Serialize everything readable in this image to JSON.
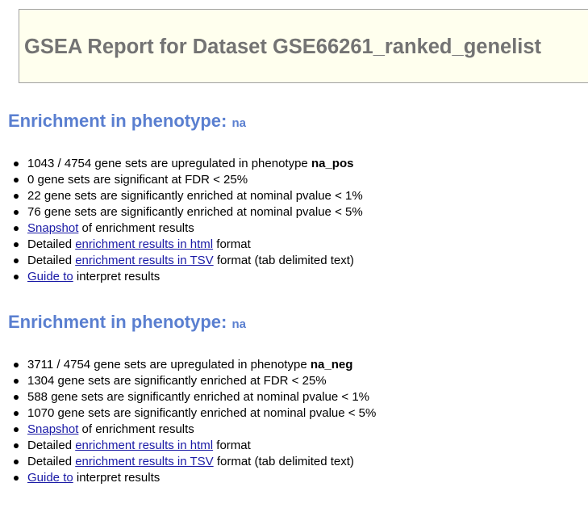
{
  "title": "GSEA Report for Dataset GSE66261_ranked_genelist",
  "sections": [
    {
      "heading": "Enrichment in phenotype:",
      "phenotype": "na",
      "items": {
        "upregulated": {
          "pre": "1043 / 4754 gene sets are upregulated in phenotype ",
          "phenotype": "na_pos"
        },
        "fdr": "0 gene sets are significant at FDR < 25%",
        "p1": "22 gene sets are significantly enriched at nominal pvalue < 1%",
        "p5": "76 gene sets are significantly enriched at nominal pvalue < 5%",
        "snapshot": {
          "link": "Snapshot",
          "post": " of enrichment results"
        },
        "html": {
          "pre": "Detailed ",
          "link": "enrichment results in html",
          "post": " format"
        },
        "tsv": {
          "pre": "Detailed ",
          "link": "enrichment results in TSV",
          "post": " format (tab delimited text)"
        },
        "guide": {
          "link": "Guide to",
          "post": " interpret results"
        }
      }
    },
    {
      "heading": "Enrichment in phenotype:",
      "phenotype": "na",
      "items": {
        "upregulated": {
          "pre": "3711 / 4754 gene sets are upregulated in phenotype ",
          "phenotype": "na_neg"
        },
        "fdr": "1304 gene sets are significantly enriched at FDR < 25%",
        "p1": "588 gene sets are significantly enriched at nominal pvalue < 1%",
        "p5": "1070 gene sets are significantly enriched at nominal pvalue < 5%",
        "snapshot": {
          "link": "Snapshot",
          "post": " of enrichment results"
        },
        "html": {
          "pre": "Detailed ",
          "link": "enrichment results in html",
          "post": " format"
        },
        "tsv": {
          "pre": "Detailed ",
          "link": "enrichment results in TSV",
          "post": " format (tab delimited text)"
        },
        "guide": {
          "link": "Guide to",
          "post": " interpret results"
        }
      }
    }
  ]
}
